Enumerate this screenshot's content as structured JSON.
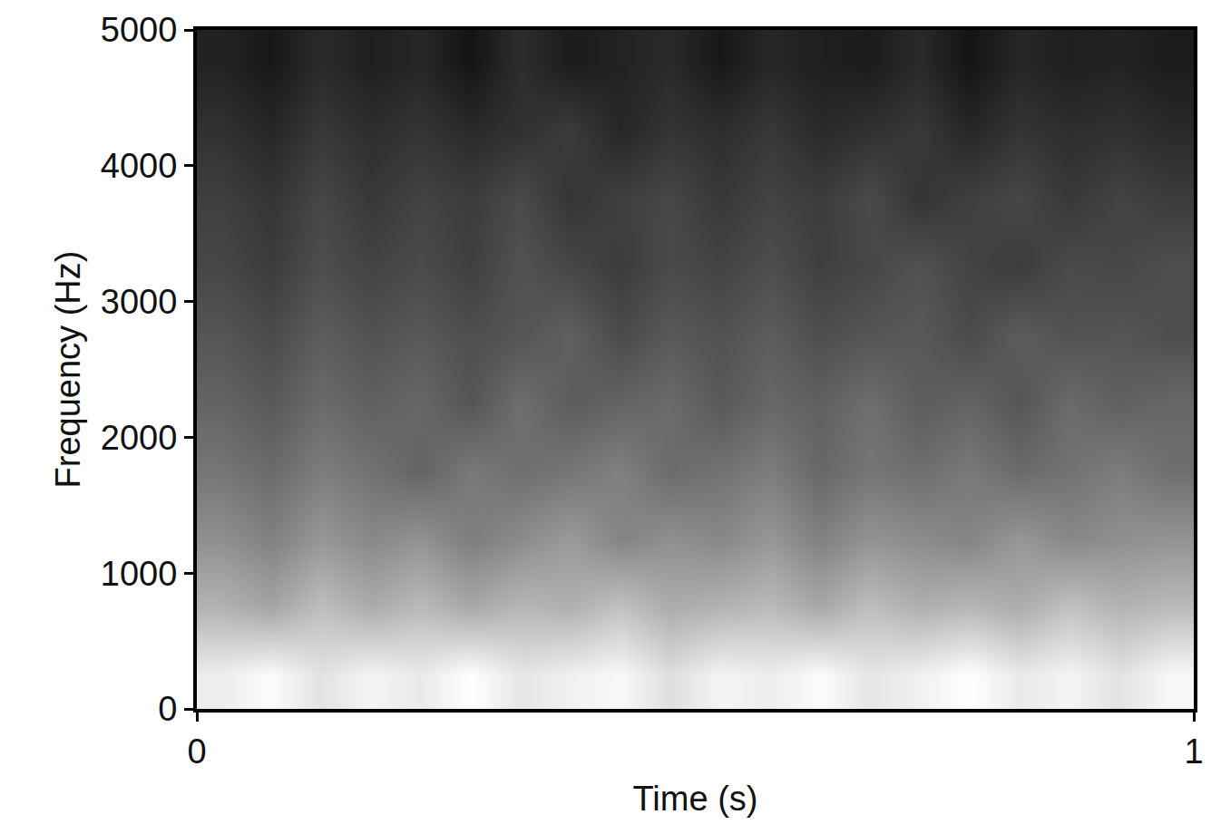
{
  "chart_data": {
    "type": "heatmap",
    "x_label": "Time (s)",
    "y_label": "Frequency (Hz)",
    "x": [
      0.025,
      0.075,
      0.125,
      0.175,
      0.225,
      0.275,
      0.325,
      0.375,
      0.425,
      0.475,
      0.525,
      0.575,
      0.625,
      0.675,
      0.725,
      0.775,
      0.825,
      0.875,
      0.925,
      0.975
    ],
    "y": [
      250,
      750,
      1250,
      1750,
      2250,
      2750,
      3250,
      3750,
      4250,
      4750
    ],
    "cells": [
      [
        88,
        92,
        85,
        90,
        87,
        93,
        86,
        89,
        91,
        84,
        90,
        88,
        92,
        86,
        89,
        93,
        87,
        90,
        85,
        91
      ],
      [
        72,
        68,
        75,
        70,
        74,
        69,
        73,
        71,
        76,
        70,
        72,
        74,
        69,
        75,
        71,
        73,
        70,
        76,
        72,
        74
      ],
      [
        62,
        58,
        64,
        60,
        63,
        57,
        61,
        65,
        59,
        62,
        60,
        64,
        58,
        63,
        61,
        59,
        64,
        60,
        62,
        63
      ],
      [
        55,
        52,
        57,
        54,
        50,
        56,
        53,
        55,
        58,
        52,
        54,
        57,
        51,
        55,
        53,
        56,
        52,
        54,
        57,
        53
      ],
      [
        50,
        47,
        52,
        49,
        51,
        46,
        53,
        48,
        50,
        52,
        47,
        51,
        49,
        53,
        48,
        50,
        46,
        52,
        49,
        51
      ],
      [
        46,
        43,
        48,
        45,
        47,
        44,
        46,
        49,
        43,
        47,
        45,
        48,
        44,
        46,
        47,
        43,
        48,
        45,
        46,
        44
      ],
      [
        42,
        39,
        44,
        41,
        43,
        40,
        45,
        42,
        39,
        43,
        41,
        44,
        40,
        42,
        45,
        41,
        39,
        43,
        42,
        44
      ],
      [
        40,
        37,
        42,
        38,
        41,
        39,
        43,
        37,
        40,
        42,
        38,
        41,
        39,
        43,
        37,
        40,
        42,
        38,
        41,
        39
      ],
      [
        36,
        33,
        38,
        35,
        37,
        34,
        36,
        39,
        33,
        37,
        35,
        38,
        34,
        36,
        38,
        33,
        37,
        35,
        36,
        34
      ],
      [
        32,
        29,
        34,
        31,
        33,
        28,
        35,
        30,
        32,
        34,
        29,
        33,
        31,
        30,
        34,
        28,
        33,
        31,
        32,
        30
      ]
    ],
    "xlim": [
      0,
      1
    ],
    "xticks": [
      0,
      1
    ],
    "ylim": [
      0,
      5000
    ],
    "yticks": [
      0,
      1000,
      2000,
      3000,
      4000,
      5000
    ],
    "grid": false
  }
}
